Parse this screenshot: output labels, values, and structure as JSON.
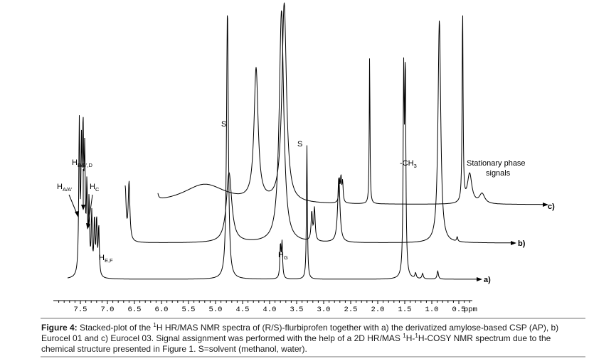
{
  "chart_data": {
    "type": "line",
    "title": "",
    "xlabel": "ppm",
    "xlim": [
      7.9,
      0.0
    ],
    "x_reversed": true,
    "x_ticks": [
      "7.5",
      "7.0",
      "6.5",
      "6.0",
      "5.5",
      "5.0",
      "4.5",
      "4.0",
      "3.5",
      "3.0",
      "2.5",
      "2.0",
      "1.5",
      "1.0",
      "0.5"
    ],
    "x_tick_values": [
      7.5,
      7.0,
      6.5,
      6.0,
      5.5,
      5.0,
      4.5,
      4.0,
      3.5,
      3.0,
      2.5,
      2.0,
      1.5,
      1.0,
      0.5
    ],
    "grid": false,
    "series": [
      {
        "name": "a)",
        "baseline": 0,
        "peaks": [
          {
            "x": 7.52,
            "y": 0.55,
            "w": 0.012
          },
          {
            "x": 7.48,
            "y": 0.42,
            "w": 0.012
          },
          {
            "x": 7.45,
            "y": 0.48,
            "w": 0.012
          },
          {
            "x": 7.42,
            "y": 0.4,
            "w": 0.012
          },
          {
            "x": 7.38,
            "y": 0.3,
            "w": 0.012
          },
          {
            "x": 7.34,
            "y": 0.26,
            "w": 0.012
          },
          {
            "x": 7.29,
            "y": 0.22,
            "w": 0.012
          },
          {
            "x": 7.24,
            "y": 0.2,
            "w": 0.012
          },
          {
            "x": 7.2,
            "y": 0.2,
            "w": 0.012
          },
          {
            "x": 7.16,
            "y": 0.18,
            "w": 0.012
          },
          {
            "x": 4.78,
            "y": 1.0,
            "w": 0.02
          },
          {
            "x": 3.8,
            "y": 0.12,
            "w": 0.012
          },
          {
            "x": 3.77,
            "y": 0.13,
            "w": 0.012
          },
          {
            "x": 3.31,
            "y": 0.5,
            "w": 0.01
          },
          {
            "x": 1.52,
            "y": 0.72,
            "w": 0.012
          },
          {
            "x": 1.49,
            "y": 0.74,
            "w": 0.012
          },
          {
            "x": 1.3,
            "y": 0.02,
            "w": 0.015
          },
          {
            "x": 1.17,
            "y": 0.02,
            "w": 0.015
          },
          {
            "x": 0.89,
            "y": 0.03,
            "w": 0.015
          }
        ]
      },
      {
        "name": "b)",
        "baseline": 0,
        "peaks": [
          {
            "x": 7.52,
            "y": 0.24,
            "w": 0.015
          },
          {
            "x": 7.47,
            "y": 0.3,
            "w": 0.015
          },
          {
            "x": 7.43,
            "y": 0.27,
            "w": 0.015
          },
          {
            "x": 7.38,
            "y": 0.17,
            "w": 0.015
          },
          {
            "x": 7.33,
            "y": 0.12,
            "w": 0.015
          },
          {
            "x": 6.82,
            "y": 0.18,
            "w": 0.018
          },
          {
            "x": 6.75,
            "y": 0.2,
            "w": 0.018
          },
          {
            "x": 6.67,
            "y": 0.22,
            "w": 0.018
          },
          {
            "x": 6.6,
            "y": 0.25,
            "w": 0.018
          },
          {
            "x": 4.75,
            "y": 0.3,
            "w": 0.06
          },
          {
            "x": 3.78,
            "y": 1.0,
            "w": 0.05
          },
          {
            "x": 3.22,
            "y": 0.12,
            "w": 0.015
          },
          {
            "x": 3.17,
            "y": 0.14,
            "w": 0.015
          },
          {
            "x": 2.72,
            "y": 0.28,
            "w": 0.025
          },
          {
            "x": 0.86,
            "y": 0.96,
            "w": 0.03
          },
          {
            "x": 0.53,
            "y": 0.02,
            "w": 0.012
          }
        ]
      },
      {
        "name": "c)",
        "baseline": 0,
        "peaks": [
          {
            "x": 6.44,
            "y": 0.26,
            "w": 0.012
          },
          {
            "x": 6.41,
            "y": 0.23,
            "w": 0.012
          },
          {
            "x": 6.37,
            "y": 0.29,
            "w": 0.012
          },
          {
            "x": 6.33,
            "y": 0.21,
            "w": 0.012
          },
          {
            "x": 6.28,
            "y": 0.14,
            "w": 0.012
          },
          {
            "x": 6.18,
            "y": 0.16,
            "w": 0.012
          },
          {
            "x": 6.13,
            "y": 0.14,
            "w": 0.012
          },
          {
            "x": 6.09,
            "y": 0.12,
            "w": 0.012
          },
          {
            "x": 5.2,
            "y": 0.1,
            "w": 0.5
          },
          {
            "x": 4.25,
            "y": 0.66,
            "w": 0.045
          },
          {
            "x": 3.73,
            "y": 1.0,
            "w": 0.05
          },
          {
            "x": 2.71,
            "y": 0.11,
            "w": 0.012
          },
          {
            "x": 2.68,
            "y": 0.12,
            "w": 0.012
          },
          {
            "x": 2.65,
            "y": 0.1,
            "w": 0.012
          },
          {
            "x": 2.15,
            "y": 0.75,
            "w": 0.008
          },
          {
            "x": 0.43,
            "y": 0.98,
            "w": 0.01
          },
          {
            "x": 0.3,
            "y": 0.15,
            "w": 0.05
          },
          {
            "x": 0.07,
            "y": 0.05,
            "w": 0.06
          }
        ]
      }
    ],
    "annotations": {
      "ha": {
        "main": "H",
        "sub": "A/A'"
      },
      "hbd": {
        "main": "H",
        "sub": "B/B',D"
      },
      "hc": {
        "main": "H",
        "sub": "C"
      },
      "hef": {
        "main": "H",
        "sub": "E,F"
      },
      "hg": {
        "main": "H",
        "sub": "G"
      },
      "s1": "S",
      "s2": "S",
      "ch3": {
        "main": "-CH",
        "sub": "3"
      },
      "stat1": "Stationary phase",
      "stat2": "signals"
    }
  },
  "caption": {
    "bold": "Figure 4:",
    "p1": " Stacked-plot of the ",
    "sup1": "1",
    "p2": "H HR/MAS NMR spectra of (R/S)-flurbiprofen together with a) the derivatized amylose-based CSP (AP), b) Eurocel 01 and c) Eurocel 03. Signal assignment was performed with the help of a 2D HR/MAS ",
    "sup2": "1",
    "p3": "H-",
    "sup3": "1",
    "p4": "H-COSY NMR spectrum due to the chemical structure presented in Figure 1. S=solvent (methanol, water)."
  }
}
